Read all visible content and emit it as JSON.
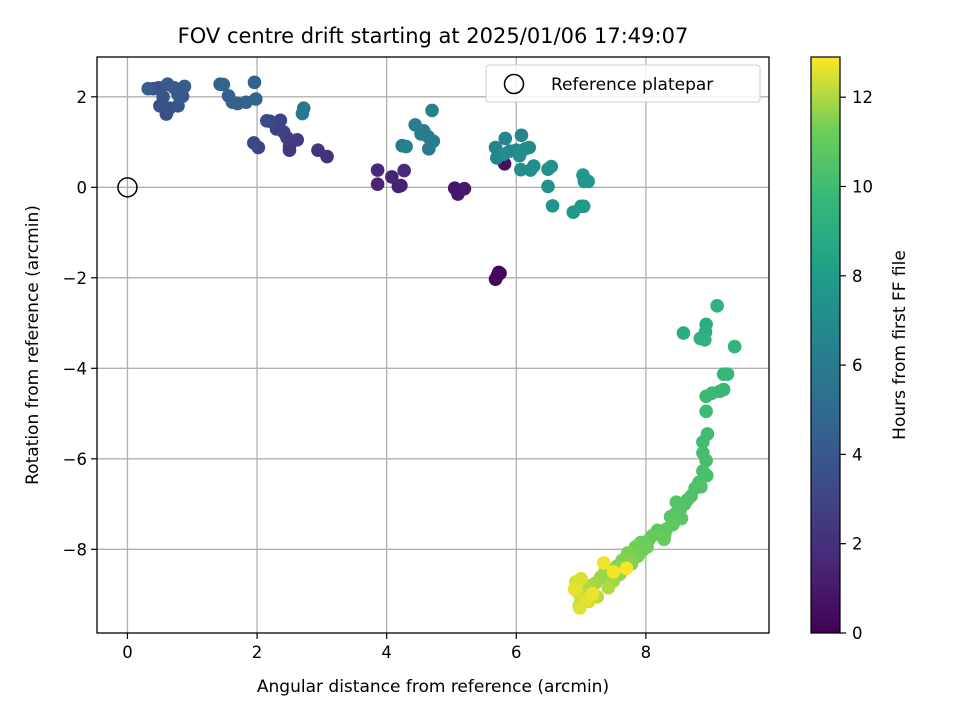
{
  "chart_data": {
    "type": "scatter",
    "title": "FOV centre drift starting at 2025/01/06 17:49:07",
    "xlabel": "Angular distance from reference (arcmin)",
    "ylabel": "Rotation from reference (arcmin)",
    "xlim": [
      -0.47,
      9.9
    ],
    "ylim": [
      -9.85,
      2.88
    ],
    "xticks": [
      0,
      2,
      4,
      6,
      8
    ],
    "yticks": [
      -8,
      -6,
      -4,
      -2,
      0,
      2
    ],
    "grid": true,
    "legend": {
      "position": "top-right",
      "entries": [
        "Reference platepar"
      ]
    },
    "reference_point": {
      "x": 0,
      "y": 0
    },
    "colorbar": {
      "label": "Hours from first FF file",
      "range": [
        0,
        12.9
      ],
      "ticks": [
        0,
        2,
        4,
        6,
        8,
        10,
        12
      ],
      "colormap": "viridis"
    },
    "points": [
      [
        5.71,
        -1.95,
        0.1
      ],
      [
        5.73,
        -1.88,
        0.15
      ],
      [
        5.68,
        -2.03,
        0.2
      ],
      [
        5.75,
        -1.9,
        0.25
      ],
      [
        5.82,
        0.52,
        0.6
      ],
      [
        5.05,
        -0.02,
        0.8
      ],
      [
        5.1,
        -0.15,
        0.9
      ],
      [
        5.2,
        -0.03,
        1.0
      ],
      [
        4.18,
        0.02,
        1.3
      ],
      [
        4.22,
        0.04,
        1.35
      ],
      [
        4.08,
        0.23,
        1.4
      ],
      [
        3.86,
        0.07,
        1.5
      ],
      [
        3.86,
        0.38,
        1.6
      ],
      [
        4.27,
        0.37,
        1.7
      ],
      [
        3.08,
        0.68,
        2.1
      ],
      [
        2.94,
        0.82,
        2.2
      ],
      [
        2.5,
        0.82,
        2.4
      ],
      [
        2.5,
        0.9,
        2.5
      ],
      [
        2.62,
        1.05,
        2.6
      ],
      [
        2.46,
        1.1,
        2.7
      ],
      [
        2.41,
        1.22,
        2.8
      ],
      [
        2.3,
        1.29,
        2.85
      ],
      [
        2.36,
        1.48,
        2.9
      ],
      [
        2.02,
        0.88,
        3.0
      ],
      [
        1.95,
        0.98,
        3.1
      ],
      [
        2.2,
        1.46,
        3.2
      ],
      [
        2.15,
        1.47,
        3.3
      ],
      [
        0.6,
        1.62,
        3.5
      ],
      [
        0.5,
        1.8,
        3.6
      ],
      [
        0.65,
        1.75,
        3.65
      ],
      [
        0.4,
        2.18,
        3.7
      ],
      [
        0.48,
        2.2,
        3.75
      ],
      [
        0.55,
        2.0,
        3.8
      ],
      [
        0.78,
        1.8,
        3.9
      ],
      [
        0.85,
        2.01,
        4.0
      ],
      [
        0.62,
        2.28,
        4.05
      ],
      [
        0.78,
        2.05,
        4.1
      ],
      [
        0.72,
        2.2,
        4.15
      ],
      [
        0.88,
        2.23,
        4.2
      ],
      [
        0.32,
        2.18,
        4.25
      ],
      [
        1.43,
        2.28,
        4.3
      ],
      [
        1.56,
        2.02,
        4.4
      ],
      [
        1.62,
        1.88,
        4.45
      ],
      [
        1.7,
        1.85,
        4.5
      ],
      [
        1.83,
        1.88,
        4.55
      ],
      [
        1.96,
        2.32,
        4.6
      ],
      [
        1.98,
        1.95,
        4.7
      ],
      [
        1.48,
        2.27,
        4.75
      ],
      [
        2.72,
        1.75,
        5.7
      ],
      [
        2.7,
        1.63,
        5.75
      ],
      [
        4.24,
        0.92,
        5.8
      ],
      [
        4.65,
        0.85,
        5.9
      ],
      [
        4.53,
        1.18,
        6.0
      ],
      [
        4.57,
        1.25,
        6.05
      ],
      [
        4.64,
        1.12,
        6.1
      ],
      [
        4.72,
        1.02,
        6.15
      ],
      [
        4.44,
        1.38,
        6.2
      ],
      [
        4.7,
        1.7,
        6.3
      ],
      [
        4.3,
        0.9,
        6.35
      ],
      [
        5.7,
        0.65,
        6.6
      ],
      [
        5.68,
        0.88,
        6.65
      ],
      [
        5.83,
        1.08,
        6.7
      ],
      [
        6.08,
        1.15,
        6.75
      ],
      [
        5.9,
        0.8,
        6.8
      ],
      [
        6.0,
        0.82,
        6.85
      ],
      [
        6.14,
        0.85,
        6.9
      ],
      [
        6.2,
        0.88,
        6.95
      ],
      [
        6.05,
        0.7,
        7.0
      ],
      [
        5.8,
        0.73,
        7.05
      ],
      [
        6.27,
        0.47,
        7.1
      ],
      [
        6.07,
        0.39,
        7.15
      ],
      [
        6.22,
        0.38,
        7.2
      ],
      [
        6.49,
        0.4,
        7.3
      ],
      [
        6.54,
        0.46,
        7.35
      ],
      [
        6.49,
        0.02,
        7.4
      ],
      [
        6.56,
        -0.41,
        7.5
      ],
      [
        6.88,
        -0.55,
        7.6
      ],
      [
        7.05,
        0.13,
        7.65
      ],
      [
        7.03,
        0.27,
        7.7
      ],
      [
        7.11,
        0.13,
        7.75
      ],
      [
        7.04,
        -0.42,
        7.8
      ],
      [
        7.0,
        -0.42,
        7.85
      ],
      [
        8.58,
        -3.22,
        9.0
      ],
      [
        8.93,
        -3.03,
        9.05
      ],
      [
        8.92,
        -3.2,
        9.1
      ],
      [
        8.84,
        -3.34,
        9.2
      ],
      [
        8.91,
        -3.37,
        9.3
      ],
      [
        9.1,
        -2.62,
        9.35
      ],
      [
        9.37,
        -3.52,
        9.4
      ],
      [
        9.2,
        -4.13,
        9.6
      ],
      [
        9.26,
        -4.13,
        9.65
      ],
      [
        9.2,
        -4.47,
        9.7
      ],
      [
        9.14,
        -4.51,
        9.75
      ],
      [
        9.02,
        -4.55,
        9.8
      ],
      [
        8.93,
        -4.62,
        9.85
      ],
      [
        8.93,
        -4.95,
        9.9
      ],
      [
        8.95,
        -5.45,
        10.0
      ],
      [
        8.88,
        -5.63,
        10.05
      ],
      [
        8.88,
        -5.87,
        10.1
      ],
      [
        8.93,
        -6.04,
        10.15
      ],
      [
        8.88,
        -6.27,
        10.2
      ],
      [
        8.94,
        -6.37,
        10.25
      ],
      [
        8.82,
        -6.52,
        10.3
      ],
      [
        8.76,
        -6.65,
        10.35
      ],
      [
        8.7,
        -6.82,
        10.4
      ],
      [
        8.85,
        -6.62,
        10.42
      ],
      [
        8.64,
        -6.91,
        10.45
      ],
      [
        8.6,
        -7.0,
        10.5
      ],
      [
        8.53,
        -7.12,
        10.55
      ],
      [
        8.47,
        -6.96,
        10.6
      ],
      [
        8.45,
        -7.22,
        10.65
      ],
      [
        8.38,
        -7.28,
        10.7
      ],
      [
        8.55,
        -7.32,
        10.75
      ],
      [
        8.42,
        -7.45,
        10.8
      ],
      [
        8.32,
        -7.55,
        10.85
      ],
      [
        8.18,
        -7.58,
        10.9
      ],
      [
        8.29,
        -7.68,
        10.95
      ],
      [
        8.1,
        -7.7,
        11.0
      ],
      [
        8.28,
        -7.78,
        11.05
      ],
      [
        8.04,
        -7.8,
        11.1
      ],
      [
        7.92,
        -7.85,
        11.15
      ],
      [
        7.95,
        -8.02,
        11.2
      ],
      [
        8.02,
        -7.95,
        11.25
      ],
      [
        7.84,
        -7.95,
        11.3
      ],
      [
        7.88,
        -8.15,
        11.35
      ],
      [
        7.8,
        -8.2,
        11.4
      ],
      [
        7.72,
        -8.08,
        11.45
      ],
      [
        7.63,
        -8.25,
        11.5
      ],
      [
        7.78,
        -8.32,
        11.55
      ],
      [
        7.55,
        -8.38,
        11.6
      ],
      [
        7.45,
        -8.45,
        11.65
      ],
      [
        7.6,
        -8.55,
        11.7
      ],
      [
        7.36,
        -8.52,
        11.75
      ],
      [
        7.3,
        -8.62,
        11.8
      ],
      [
        7.5,
        -8.7,
        11.85
      ],
      [
        7.22,
        -8.75,
        11.9
      ],
      [
        7.15,
        -8.8,
        11.95
      ],
      [
        7.42,
        -8.85,
        12.0
      ],
      [
        7.1,
        -8.9,
        12.05
      ],
      [
        7.05,
        -9.0,
        12.1
      ],
      [
        7.25,
        -9.05,
        12.15
      ],
      [
        7.0,
        -9.1,
        12.2
      ],
      [
        6.97,
        -9.25,
        12.3
      ],
      [
        7.12,
        -9.15,
        12.35
      ],
      [
        6.95,
        -8.95,
        12.4
      ],
      [
        6.92,
        -8.72,
        12.45
      ],
      [
        7.0,
        -8.65,
        12.5
      ],
      [
        6.98,
        -9.3,
        12.55
      ],
      [
        7.08,
        -9.12,
        12.6
      ],
      [
        6.9,
        -8.88,
        12.65
      ],
      [
        7.18,
        -8.98,
        12.7
      ],
      [
        7.35,
        -8.3,
        12.75
      ],
      [
        7.5,
        -8.5,
        12.8
      ],
      [
        7.7,
        -8.42,
        12.85
      ]
    ]
  }
}
